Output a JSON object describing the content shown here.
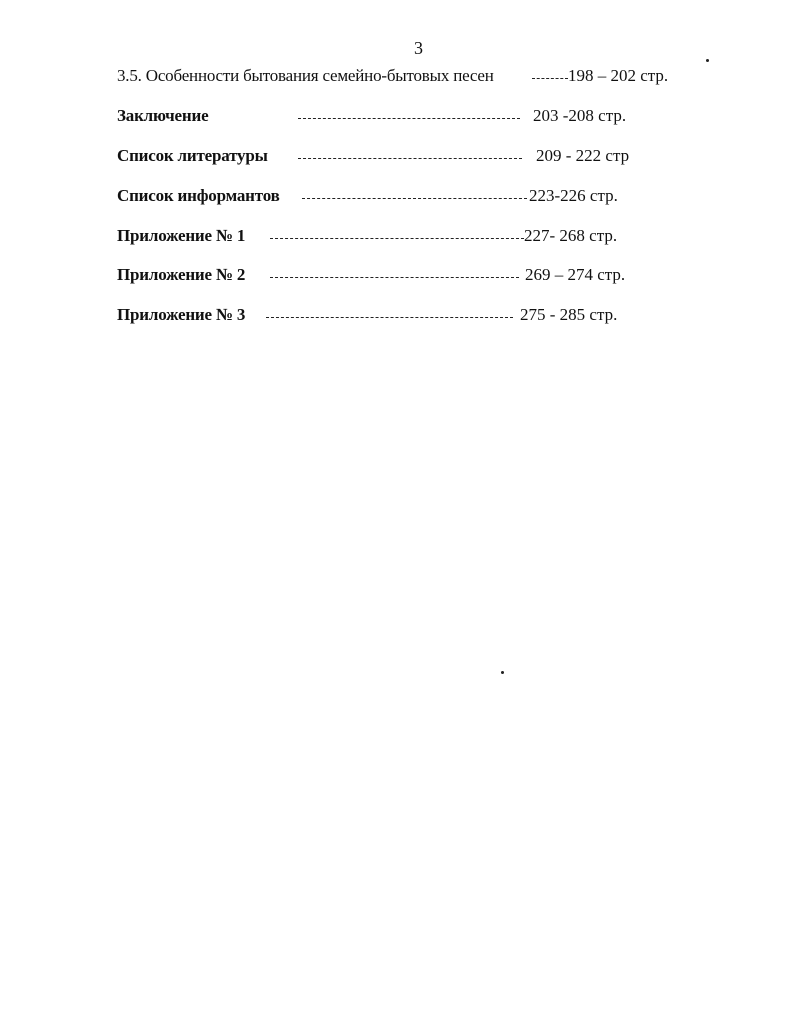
{
  "page_number": "3",
  "toc": [
    {
      "label": "3.5. Особенности бытования семейно-бытовых песен",
      "pages": "198 – 202 стр."
    },
    {
      "label": "Заключение",
      "pages": "203 -208 стр."
    },
    {
      "label": "Список литературы",
      "pages": "209 - 222 стр"
    },
    {
      "label": "Список информантов",
      "pages": "223-226 стр."
    },
    {
      "label": "Приложение № 1",
      "pages": "227- 268 стр."
    },
    {
      "label": "Приложение № 2",
      "pages": "269 – 274 стр."
    },
    {
      "label": "Приложение № 3",
      "pages": "275 - 285 стр."
    }
  ]
}
